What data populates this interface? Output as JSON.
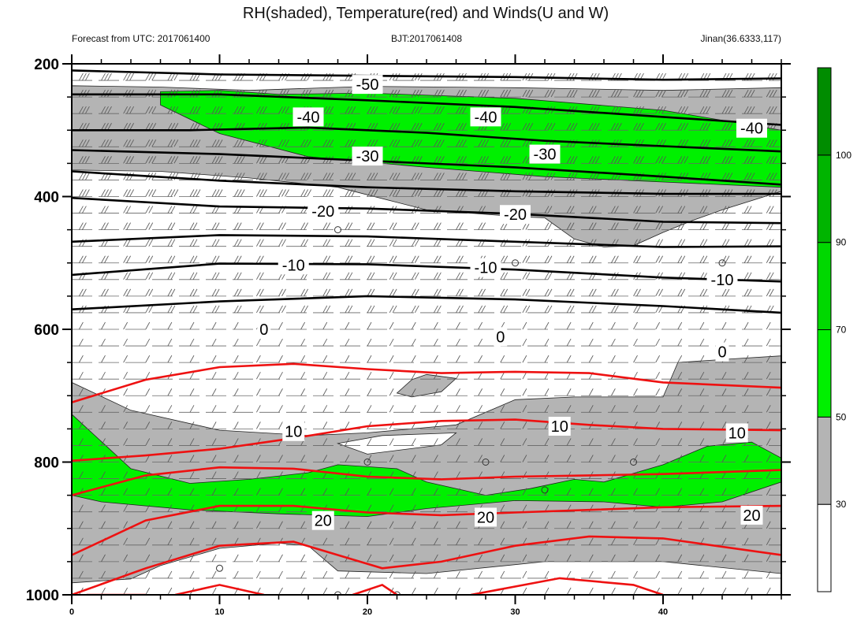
{
  "chart_data": {
    "type": "contour",
    "title": "RH(shaded), Temperature(red) and Winds(U and W)",
    "left_string": "Forecast from UTC: 2017061400",
    "center_string": "BJT:2017061408",
    "right_string": "Jinan(36.6333,117)",
    "x_range": [
      0,
      48
    ],
    "x_ticks": [
      "0",
      "10",
      "20",
      "30",
      "40"
    ],
    "y_range": [
      200,
      1000
    ],
    "y_ticks": [
      "200",
      "400",
      "600",
      "800",
      "1000"
    ],
    "colorbar": {
      "colors": [
        "#ffffff",
        "#b4b4b4",
        "#00f000",
        "#00d800",
        "#00b400",
        "#008c00"
      ],
      "levels": [
        "30",
        "50",
        "70",
        "90",
        "100"
      ]
    },
    "temperature_labels": [
      {
        "text": "-50",
        "x": 20,
        "y": 231
      },
      {
        "text": "-40",
        "x": 16,
        "y": 280
      },
      {
        "text": "-40",
        "x": 28,
        "y": 280
      },
      {
        "text": "-40",
        "x": 46,
        "y": 297
      },
      {
        "text": "-30",
        "x": 20,
        "y": 339
      },
      {
        "text": "-30",
        "x": 32,
        "y": 336
      },
      {
        "text": "-20",
        "x": 17,
        "y": 422
      },
      {
        "text": "-20",
        "x": 30,
        "y": 427
      },
      {
        "text": "-10",
        "x": 15,
        "y": 503
      },
      {
        "text": "-10",
        "x": 28,
        "y": 507
      },
      {
        "text": "-10",
        "x": 44,
        "y": 525
      },
      {
        "text": "0",
        "x": 13,
        "y": 600
      },
      {
        "text": "0",
        "x": 29,
        "y": 611
      },
      {
        "text": "0",
        "x": 44,
        "y": 634
      },
      {
        "text": "10",
        "x": 15,
        "y": 754
      },
      {
        "text": "10",
        "x": 33,
        "y": 746
      },
      {
        "text": "10",
        "x": 45,
        "y": 756
      },
      {
        "text": "20",
        "x": 17,
        "y": 888
      },
      {
        "text": "20",
        "x": 28,
        "y": 883
      },
      {
        "text": "20",
        "x": 46,
        "y": 880
      }
    ],
    "black_isotherms": [
      {
        "value": "-50",
        "points": [
          [
            0,
            210
          ],
          [
            10,
            216
          ],
          [
            20,
            218
          ],
          [
            30,
            220
          ],
          [
            40,
            224
          ],
          [
            48,
            222
          ]
        ]
      },
      {
        "value": "-40",
        "points": [
          [
            0,
            246
          ],
          [
            10,
            246
          ],
          [
            20,
            255
          ],
          [
            30,
            265
          ],
          [
            40,
            280
          ],
          [
            48,
            292
          ]
        ]
      },
      {
        "value": "-35",
        "points": [
          [
            0,
            300
          ],
          [
            8,
            300
          ],
          [
            16,
            296
          ],
          [
            24,
            304
          ],
          [
            32,
            316
          ],
          [
            40,
            324
          ],
          [
            48,
            332
          ]
        ]
      },
      {
        "value": "-30",
        "points": [
          [
            0,
            330
          ],
          [
            10,
            336
          ],
          [
            20,
            346
          ],
          [
            30,
            356
          ],
          [
            40,
            370
          ],
          [
            48,
            382
          ]
        ]
      },
      {
        "value": "-25",
        "points": [
          [
            0,
            362
          ],
          [
            10,
            376
          ],
          [
            20,
            386
          ],
          [
            30,
            392
          ],
          [
            40,
            396
          ],
          [
            48,
            396
          ]
        ]
      },
      {
        "value": "-20",
        "points": [
          [
            0,
            402
          ],
          [
            10,
            415
          ],
          [
            20,
            418
          ],
          [
            30,
            426
          ],
          [
            40,
            438
          ],
          [
            48,
            440
          ]
        ]
      },
      {
        "value": "-15",
        "points": [
          [
            0,
            468
          ],
          [
            10,
            458
          ],
          [
            20,
            460
          ],
          [
            30,
            468
          ],
          [
            40,
            476
          ],
          [
            48,
            475
          ]
        ]
      },
      {
        "value": "-10",
        "points": [
          [
            0,
            518
          ],
          [
            10,
            501
          ],
          [
            20,
            502
          ],
          [
            30,
            510
          ],
          [
            40,
            522
          ],
          [
            48,
            528
          ]
        ]
      },
      {
        "value": "-5",
        "points": [
          [
            0,
            570
          ],
          [
            10,
            558
          ],
          [
            20,
            550
          ],
          [
            30,
            555
          ],
          [
            40,
            565
          ],
          [
            48,
            575
          ]
        ]
      }
    ],
    "red_isotherms": [
      {
        "value": "5",
        "points": [
          [
            0,
            710
          ],
          [
            5,
            676
          ],
          [
            10,
            657
          ],
          [
            15,
            652
          ],
          [
            20,
            660
          ],
          [
            25,
            666
          ],
          [
            30,
            664
          ],
          [
            35,
            666
          ],
          [
            40,
            680
          ],
          [
            48,
            688
          ]
        ]
      },
      {
        "value": "10",
        "points": [
          [
            0,
            798
          ],
          [
            5,
            790
          ],
          [
            10,
            780
          ],
          [
            15,
            764
          ],
          [
            20,
            746
          ],
          [
            25,
            738
          ],
          [
            30,
            736
          ],
          [
            35,
            744
          ],
          [
            40,
            750
          ],
          [
            48,
            752
          ]
        ]
      },
      {
        "value": "15",
        "points": [
          [
            0,
            850
          ],
          [
            5,
            820
          ],
          [
            10,
            808
          ],
          [
            15,
            810
          ],
          [
            20,
            822
          ],
          [
            25,
            826
          ],
          [
            30,
            822
          ],
          [
            35,
            820
          ],
          [
            40,
            818
          ],
          [
            48,
            812
          ]
        ]
      },
      {
        "value": "20",
        "points": [
          [
            0,
            940
          ],
          [
            5,
            888
          ],
          [
            10,
            866
          ],
          [
            15,
            866
          ],
          [
            20,
            876
          ],
          [
            25,
            880
          ],
          [
            30,
            876
          ],
          [
            35,
            872
          ],
          [
            40,
            868
          ],
          [
            48,
            866
          ]
        ]
      },
      {
        "value": "25",
        "points": [
          [
            0,
            1000
          ],
          [
            5,
            960
          ],
          [
            10,
            926
          ],
          [
            15,
            920
          ],
          [
            18,
            940
          ],
          [
            21,
            960
          ],
          [
            25,
            950
          ],
          [
            30,
            926
          ],
          [
            35,
            912
          ],
          [
            40,
            915
          ],
          [
            48,
            940
          ]
        ]
      },
      {
        "value": "30a",
        "points": [
          [
            1,
            1000
          ],
          [
            5,
            1000
          ]
        ]
      },
      {
        "value": "30b",
        "points": [
          [
            7,
            1000
          ],
          [
            10,
            985
          ],
          [
            13,
            1000
          ]
        ]
      },
      {
        "value": "30c",
        "points": [
          [
            19,
            1000
          ],
          [
            21,
            985
          ],
          [
            22,
            1000
          ]
        ]
      },
      {
        "value": "30d",
        "points": [
          [
            27,
            1000
          ],
          [
            33,
            975
          ],
          [
            38,
            985
          ],
          [
            40,
            1000
          ]
        ]
      }
    ],
    "rh_gray_regions": [
      {
        "points": [
          [
            0,
            233
          ],
          [
            6,
            235
          ],
          [
            12,
            240
          ],
          [
            20,
            234
          ],
          [
            30,
            236
          ],
          [
            40,
            240
          ],
          [
            48,
            236
          ],
          [
            48,
            392
          ],
          [
            44,
            420
          ],
          [
            42,
            436
          ],
          [
            40,
            454
          ],
          [
            38,
            474
          ],
          [
            36,
            476
          ],
          [
            34,
            464
          ],
          [
            32,
            432
          ],
          [
            30,
            430
          ],
          [
            24,
            420
          ],
          [
            18,
            386
          ],
          [
            12,
            372
          ],
          [
            6,
            362
          ],
          [
            0,
            360
          ]
        ]
      },
      {
        "points": [
          [
            24,
            668
          ],
          [
            26,
            674
          ],
          [
            25,
            694
          ],
          [
            23,
            702
          ],
          [
            22,
            696
          ],
          [
            23,
            676
          ]
        ]
      },
      {
        "points": [
          [
            0,
            680
          ],
          [
            4,
            722
          ],
          [
            10,
            752
          ],
          [
            16,
            760
          ],
          [
            20,
            756
          ],
          [
            26,
            744
          ],
          [
            30,
            706
          ],
          [
            34,
            702
          ],
          [
            40,
            702
          ],
          [
            41,
            650
          ],
          [
            45,
            644
          ],
          [
            48,
            640
          ],
          [
            48,
            1000
          ],
          [
            0,
            1000
          ]
        ]
      }
    ],
    "rh_white_regions": [
      {
        "points": [
          [
            4,
            976
          ],
          [
            6,
            956
          ],
          [
            10,
            930
          ],
          [
            14,
            922
          ],
          [
            16,
            926
          ],
          [
            18,
            964
          ],
          [
            24,
            968
          ],
          [
            32,
            950
          ],
          [
            40,
            950
          ],
          [
            48,
            968
          ],
          [
            48,
            1000
          ],
          [
            0,
            1000
          ],
          [
            0,
            982
          ]
        ]
      },
      {
        "points": [
          [
            21,
            760
          ],
          [
            26,
            756
          ],
          [
            25,
            774
          ],
          [
            20,
            788
          ],
          [
            18,
            772
          ]
        ]
      }
    ],
    "rh_green_regions": [
      {
        "points": [
          [
            6,
            242
          ],
          [
            10,
            240
          ],
          [
            14,
            246
          ],
          [
            20,
            244
          ],
          [
            30,
            252
          ],
          [
            40,
            270
          ],
          [
            48,
            300
          ],
          [
            48,
            386
          ],
          [
            40,
            378
          ],
          [
            32,
            370
          ],
          [
            24,
            356
          ],
          [
            16,
            340
          ],
          [
            10,
            305
          ],
          [
            6,
            262
          ]
        ]
      },
      {
        "points": [
          [
            0,
            728
          ],
          [
            4,
            810
          ],
          [
            8,
            832
          ],
          [
            12,
            826
          ],
          [
            16,
            816
          ],
          [
            18,
            804
          ],
          [
            22,
            810
          ],
          [
            24,
            830
          ],
          [
            28,
            850
          ],
          [
            31,
            840
          ],
          [
            34,
            826
          ],
          [
            36,
            830
          ],
          [
            40,
            804
          ],
          [
            43,
            776
          ],
          [
            46,
            770
          ],
          [
            48,
            794
          ],
          [
            48,
            830
          ],
          [
            44,
            860
          ],
          [
            40,
            868
          ],
          [
            36,
            860
          ],
          [
            30,
            858
          ],
          [
            24,
            870
          ],
          [
            20,
            882
          ],
          [
            14,
            878
          ],
          [
            8,
            872
          ],
          [
            2,
            860
          ],
          [
            0,
            850
          ]
        ]
      }
    ]
  }
}
